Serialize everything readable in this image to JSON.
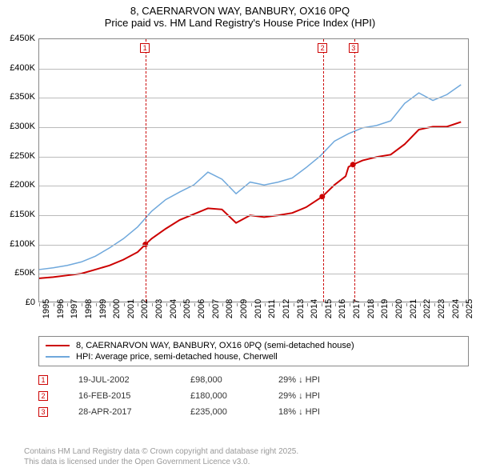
{
  "title": {
    "main": "8, CAERNARVON WAY, BANBURY, OX16 0PQ",
    "sub": "Price paid vs. HM Land Registry's House Price Index (HPI)",
    "fontsize": 13,
    "color": "#000000"
  },
  "chart": {
    "type": "line",
    "background_color": "#ffffff",
    "grid_color": "#bbbbbb",
    "border_color": "#888888",
    "ylim": [
      0,
      450000
    ],
    "ytick_step": 50000,
    "y_ticks": [
      {
        "v": 0,
        "label": "£0"
      },
      {
        "v": 50000,
        "label": "£50K"
      },
      {
        "v": 100000,
        "label": "£100K"
      },
      {
        "v": 150000,
        "label": "£150K"
      },
      {
        "v": 200000,
        "label": "£200K"
      },
      {
        "v": 250000,
        "label": "£250K"
      },
      {
        "v": 300000,
        "label": "£300K"
      },
      {
        "v": 350000,
        "label": "£350K"
      },
      {
        "v": 400000,
        "label": "£400K"
      },
      {
        "v": 450000,
        "label": "£450K"
      }
    ],
    "xlim": [
      1995,
      2025.5
    ],
    "x_ticks": [
      1995,
      1996,
      1997,
      1998,
      1999,
      2000,
      2001,
      2002,
      2003,
      2004,
      2005,
      2006,
      2007,
      2008,
      2009,
      2010,
      2011,
      2012,
      2013,
      2014,
      2015,
      2016,
      2017,
      2018,
      2019,
      2020,
      2021,
      2022,
      2023,
      2024,
      2025
    ],
    "tick_fontsize": 11,
    "series": [
      {
        "name": "price_paid",
        "label": "8, CAERNARVON WAY, BANBURY, OX16 0PQ (semi-detached house)",
        "color": "#cc0000",
        "line_width": 2,
        "data": [
          [
            1995,
            40000
          ],
          [
            1996,
            42000
          ],
          [
            1997,
            45000
          ],
          [
            1998,
            48000
          ],
          [
            1999,
            55000
          ],
          [
            2000,
            62000
          ],
          [
            2001,
            72000
          ],
          [
            2002,
            85000
          ],
          [
            2002.55,
            98000
          ],
          [
            2003,
            108000
          ],
          [
            2004,
            125000
          ],
          [
            2005,
            140000
          ],
          [
            2006,
            150000
          ],
          [
            2007,
            160000
          ],
          [
            2008,
            158000
          ],
          [
            2009,
            135000
          ],
          [
            2010,
            148000
          ],
          [
            2011,
            145000
          ],
          [
            2012,
            148000
          ],
          [
            2013,
            152000
          ],
          [
            2014,
            162000
          ],
          [
            2015.13,
            180000
          ],
          [
            2016,
            200000
          ],
          [
            2016.8,
            215000
          ],
          [
            2017.0,
            231000
          ],
          [
            2017.32,
            235000
          ],
          [
            2018,
            242000
          ],
          [
            2019,
            248000
          ],
          [
            2020,
            252000
          ],
          [
            2021,
            270000
          ],
          [
            2022,
            295000
          ],
          [
            2023,
            300000
          ],
          [
            2024,
            300000
          ],
          [
            2025,
            308000
          ]
        ]
      },
      {
        "name": "hpi",
        "label": "HPI: Average price, semi-detached house, Cherwell",
        "color": "#6fa8dc",
        "line_width": 1.5,
        "data": [
          [
            1995,
            55000
          ],
          [
            1996,
            58000
          ],
          [
            1997,
            62000
          ],
          [
            1998,
            68000
          ],
          [
            1999,
            78000
          ],
          [
            2000,
            92000
          ],
          [
            2001,
            108000
          ],
          [
            2002,
            128000
          ],
          [
            2003,
            155000
          ],
          [
            2004,
            175000
          ],
          [
            2005,
            188000
          ],
          [
            2006,
            200000
          ],
          [
            2007,
            222000
          ],
          [
            2008,
            210000
          ],
          [
            2009,
            185000
          ],
          [
            2010,
            205000
          ],
          [
            2011,
            200000
          ],
          [
            2012,
            205000
          ],
          [
            2013,
            212000
          ],
          [
            2014,
            230000
          ],
          [
            2015,
            250000
          ],
          [
            2016,
            275000
          ],
          [
            2017,
            288000
          ],
          [
            2018,
            298000
          ],
          [
            2019,
            302000
          ],
          [
            2020,
            310000
          ],
          [
            2021,
            340000
          ],
          [
            2022,
            358000
          ],
          [
            2023,
            345000
          ],
          [
            2024,
            355000
          ],
          [
            2025,
            372000
          ]
        ]
      }
    ],
    "events": [
      {
        "n": "1",
        "x": 2002.55,
        "y_marker": 98000
      },
      {
        "n": "2",
        "x": 2015.13,
        "y_marker": 180000
      },
      {
        "n": "3",
        "x": 2017.32,
        "y_marker": 235000
      }
    ]
  },
  "legend": {
    "border_color": "#888888",
    "fontsize": 11
  },
  "sales": [
    {
      "n": "1",
      "date": "19-JUL-2002",
      "price": "£98,000",
      "delta": "29% ↓ HPI"
    },
    {
      "n": "2",
      "date": "16-FEB-2015",
      "price": "£180,000",
      "delta": "29% ↓ HPI"
    },
    {
      "n": "3",
      "date": "28-APR-2017",
      "price": "£235,000",
      "delta": "18% ↓ HPI"
    }
  ],
  "attribution": {
    "line1": "Contains HM Land Registry data © Crown copyright and database right 2025.",
    "line2": "This data is licensed under the Open Government Licence v3.0.",
    "color": "#999999",
    "fontsize": 10
  }
}
